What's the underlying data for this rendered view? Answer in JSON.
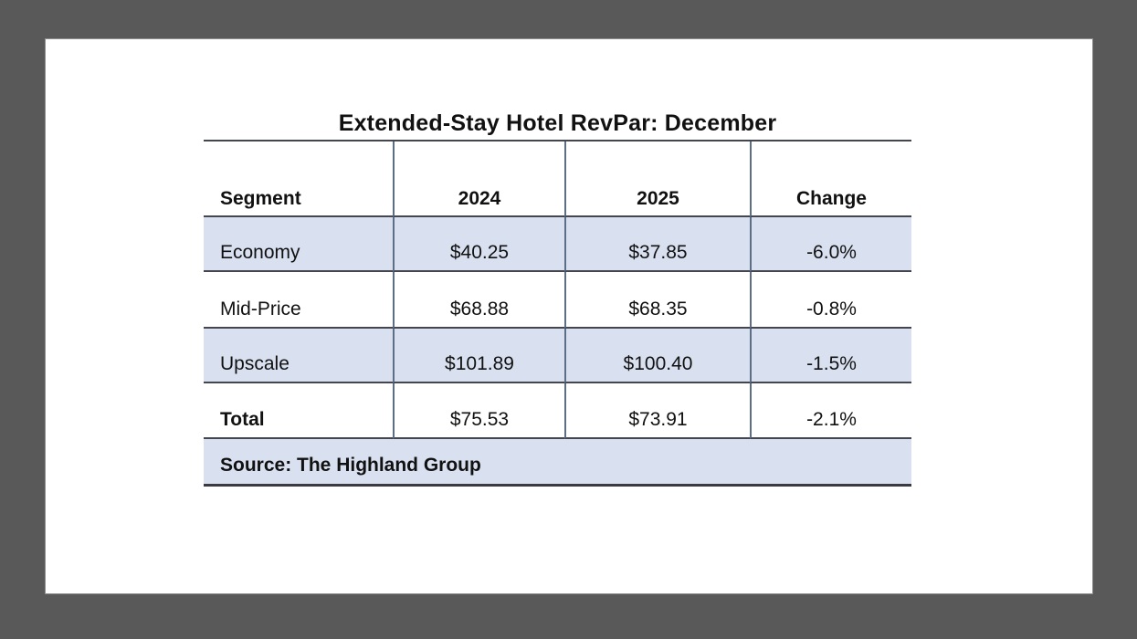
{
  "page": {
    "background_color": "#595959",
    "card_color": "#ffffff",
    "row_shade_color": "#d9e1f1",
    "horizontal_rule_color": "#44464f",
    "vertical_rule_color": "#5d6e87"
  },
  "table": {
    "title": "Extended-Stay Hotel RevPar: December",
    "columns": [
      "Segment",
      "2024",
      "2025",
      "Change"
    ],
    "rows": [
      {
        "segment": "Economy",
        "y2024": "$40.25",
        "y2025": "$37.85",
        "change": "-6.0%"
      },
      {
        "segment": "Mid-Price",
        "y2024": "$68.88",
        "y2025": "$68.35",
        "change": "-0.8%"
      },
      {
        "segment": "Upscale",
        "y2024": "$101.89",
        "y2025": "$100.40",
        "change": "-1.5%"
      },
      {
        "segment": "Total",
        "y2024": "$75.53",
        "y2025": "$73.91",
        "change": "-2.1%"
      }
    ],
    "source": "Source: The Highland Group"
  },
  "chart_data": {
    "type": "table",
    "title": "Extended-Stay Hotel RevPar: December",
    "columns": [
      "Segment",
      "2024",
      "2025",
      "Change"
    ],
    "rows": [
      [
        "Economy",
        40.25,
        37.85,
        "-6.0%"
      ],
      [
        "Mid-Price",
        68.88,
        68.35,
        "-0.8%"
      ],
      [
        "Upscale",
        101.89,
        100.4,
        "-1.5%"
      ],
      [
        "Total",
        75.53,
        73.91,
        "-2.1%"
      ]
    ],
    "source": "Source: The Highland Group",
    "layout": {
      "shaded_rows": [
        "Economy",
        "Upscale",
        "Source"
      ],
      "bold_rows": [
        "header",
        "Total segment label",
        "Source"
      ],
      "column_dividers": true,
      "outer_side_borders": false
    }
  }
}
